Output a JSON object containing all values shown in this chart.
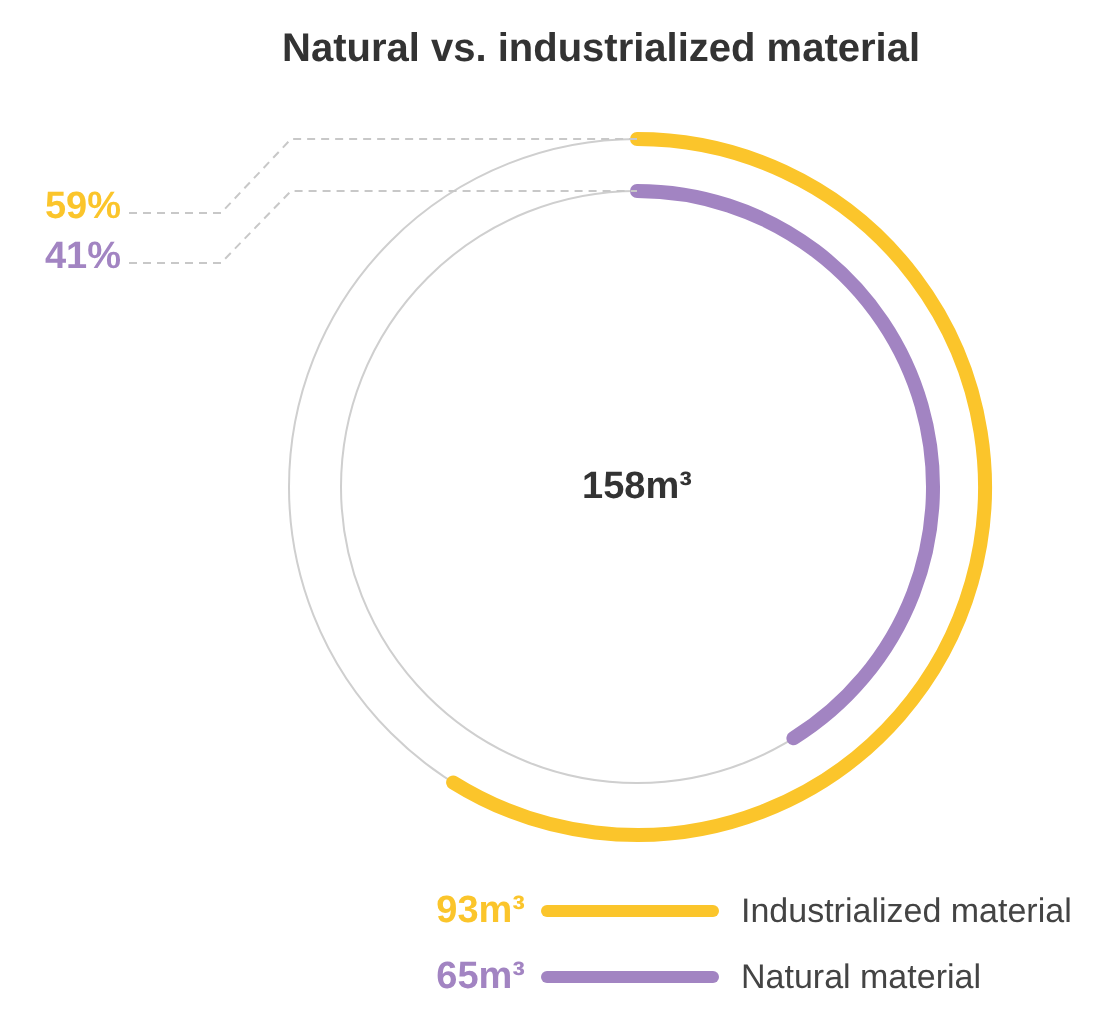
{
  "chart_data": {
    "type": "other",
    "title": "Natural vs. industrialized material",
    "categories": [
      "Industrialized material",
      "Natural material"
    ],
    "values": [
      93,
      65
    ],
    "colors": [
      "#fbc52b",
      "#a284c2"
    ],
    "value_labels": [
      "93m³",
      "65m³"
    ],
    "annotations": [
      "59%",
      "41%",
      "158m³"
    ]
  }
}
